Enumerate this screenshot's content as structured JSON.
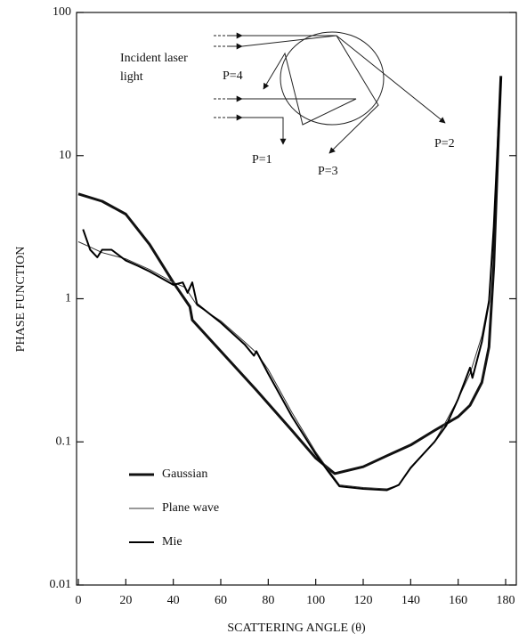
{
  "chart_data": {
    "type": "line",
    "xlabel": "SCATTERING ANGLE (θ)",
    "ylabel": "PHASE FUNCTION",
    "xlim": [
      0,
      180
    ],
    "ylim": [
      0.01,
      100
    ],
    "xticks": [
      0,
      20,
      40,
      60,
      80,
      100,
      120,
      140,
      160,
      180
    ],
    "yticks": [
      0.01,
      0.1,
      1,
      10,
      100
    ],
    "log_y": true,
    "legend": "lower left",
    "annotations": [
      "Incident laser",
      "light",
      "P=4",
      "P=1",
      "P=3",
      "P=2"
    ],
    "series": [
      {
        "name": "Gaussian",
        "color": "#111111",
        "line_width": 3,
        "x": [
          0,
          10,
          20,
          30,
          40,
          47,
          48,
          60,
          75,
          90,
          100,
          108,
          120,
          130,
          140,
          150,
          160,
          165,
          170,
          173,
          175,
          177,
          178
        ],
        "values": [
          5.4,
          4.8,
          3.9,
          2.4,
          1.3,
          0.88,
          0.71,
          0.43,
          0.23,
          0.12,
          0.077,
          0.06,
          0.067,
          0.08,
          0.095,
          0.12,
          0.15,
          0.18,
          0.26,
          0.46,
          1.7,
          14,
          36
        ]
      },
      {
        "name": "Plane wave",
        "color": "#333333",
        "line_width": 1,
        "x": [
          0,
          5,
          10,
          20,
          30,
          40,
          45,
          50,
          60,
          70,
          75,
          80,
          90,
          100,
          105,
          110,
          120,
          130,
          135,
          140,
          150,
          155,
          160,
          165,
          170,
          173,
          175,
          177,
          178
        ],
        "values": [
          2.5,
          2.3,
          2.1,
          1.9,
          1.6,
          1.3,
          1.2,
          0.9,
          0.7,
          0.5,
          0.42,
          0.32,
          0.16,
          0.085,
          0.065,
          0.05,
          0.048,
          0.047,
          0.05,
          0.065,
          0.1,
          0.14,
          0.2,
          0.3,
          0.55,
          1,
          3,
          15,
          33
        ]
      },
      {
        "name": "Mie",
        "color": "#000000",
        "line_width": 2,
        "x": [
          2,
          5,
          8,
          10,
          14,
          20,
          25,
          30,
          40,
          44,
          46,
          48,
          50,
          60,
          70,
          74,
          75,
          80,
          90,
          100,
          105,
          110,
          120,
          130,
          135,
          140,
          150,
          155,
          160,
          165,
          166,
          170,
          173,
          175,
          177,
          178
        ],
        "values": [
          3.05,
          2.2,
          1.95,
          2.2,
          2.2,
          1.85,
          1.7,
          1.55,
          1.25,
          1.3,
          1.1,
          1.3,
          0.92,
          0.68,
          0.48,
          0.4,
          0.43,
          0.3,
          0.15,
          0.082,
          0.063,
          0.049,
          0.047,
          0.046,
          0.05,
          0.066,
          0.1,
          0.13,
          0.2,
          0.33,
          0.28,
          0.5,
          0.95,
          3.2,
          16,
          35
        ]
      }
    ]
  }
}
